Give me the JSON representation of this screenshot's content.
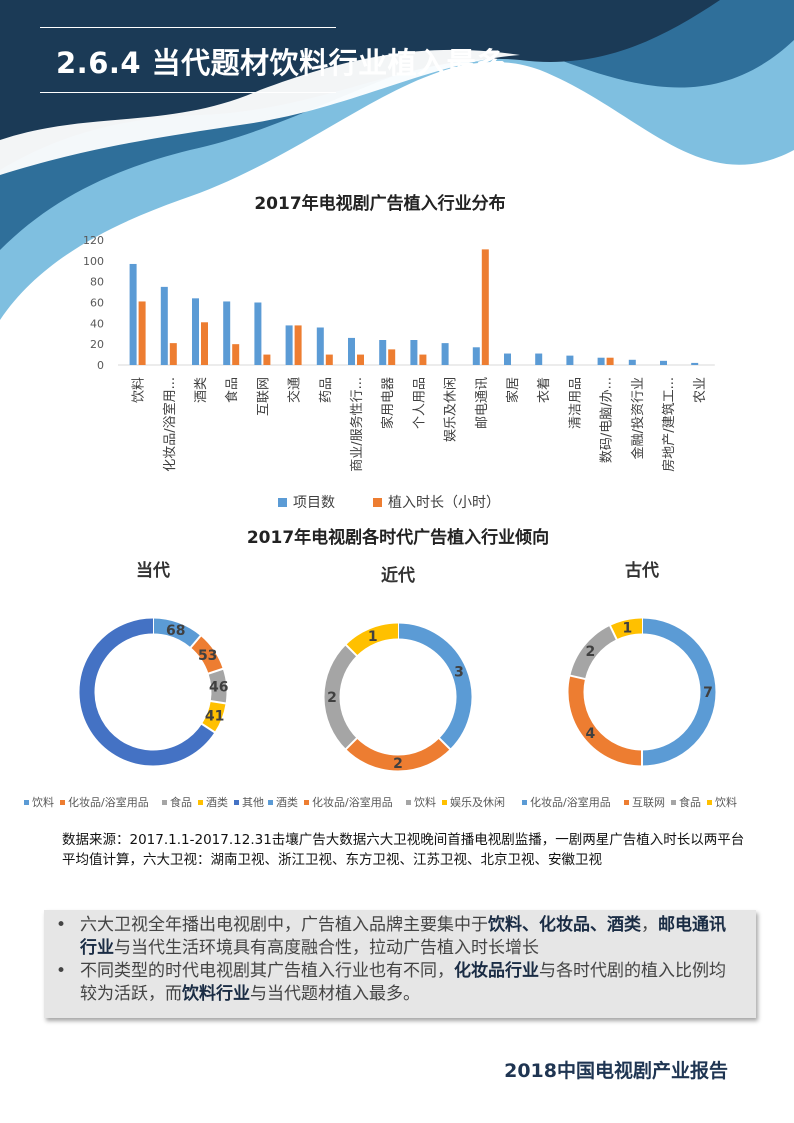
{
  "header": {
    "title": "2.6.4 当代题材饮料行业植入最多"
  },
  "colors": {
    "blue": "#5b9bd5",
    "orange": "#ed7d31",
    "gray": "#a5a5a5",
    "yellow": "#ffc000",
    "darkblue": "#4472c4",
    "navy": "#1f3552"
  },
  "chart_data": [
    {
      "type": "bar",
      "title": "2017年电视剧广告植入行业分布",
      "categories": [
        "饮料",
        "化妆品/浴室用...",
        "酒类",
        "食品",
        "互联网",
        "交通",
        "药品",
        "商业/服务性行...",
        "家用电器",
        "个人用品",
        "娱乐及休闲",
        "邮电通讯",
        "家居",
        "衣着",
        "清洁用品",
        "数码/电脑/办...",
        "金融/投资行业",
        "房地产/建筑工...",
        "农业"
      ],
      "yticks": [
        "0",
        "20",
        "40",
        "60",
        "80",
        "100",
        "120"
      ],
      "ylim": [
        0,
        120
      ],
      "grid": false,
      "legend_position": "bottom",
      "series": [
        {
          "name": "项目数",
          "color": "#5b9bd5",
          "values": [
            97,
            75,
            64,
            61,
            60,
            38,
            36,
            26,
            24,
            24,
            21,
            17,
            11,
            11,
            9,
            7,
            5,
            4,
            2
          ]
        },
        {
          "name": "植入时长（小时）",
          "color": "#ed7d31",
          "values": [
            61,
            21,
            41,
            20,
            10,
            38,
            10,
            10,
            15,
            10,
            0,
            111,
            0,
            0,
            0,
            7,
            0,
            0,
            0
          ]
        }
      ]
    },
    {
      "type": "pie",
      "style": "donut",
      "title": "2017年电视剧各时代广告植入行业倾向",
      "charts": [
        {
          "name": "当代",
          "slices": [
            {
              "label": "饮料",
              "value": 68,
              "color": "#5b9bd5",
              "shown": true
            },
            {
              "label": "化妆品/浴室用品",
              "value": 53,
              "color": "#ed7d31",
              "shown": true
            },
            {
              "label": "食品",
              "value": 46,
              "color": "#a5a5a5",
              "shown": true
            },
            {
              "label": "酒类",
              "value": 41,
              "color": "#ffc000",
              "shown": true
            },
            {
              "label": "其他",
              "value": 400,
              "color": "#4472c4",
              "shown": false
            }
          ]
        },
        {
          "name": "近代",
          "slices": [
            {
              "label": "酒类",
              "value": 3,
              "color": "#5b9bd5",
              "shown": true
            },
            {
              "label": "化妆品/浴室用品",
              "value": 2,
              "color": "#ed7d31",
              "shown": true
            },
            {
              "label": "饮料",
              "value": 2,
              "color": "#a5a5a5",
              "shown": true
            },
            {
              "label": "娱乐及休闲",
              "value": 1,
              "color": "#ffc000",
              "shown": true
            }
          ]
        },
        {
          "name": "古代",
          "slices": [
            {
              "label": "化妆品/浴室用品",
              "value": 7,
              "color": "#5b9bd5",
              "shown": true
            },
            {
              "label": "互联网",
              "value": 4,
              "color": "#ed7d31",
              "shown": true
            },
            {
              "label": "食品",
              "value": 2,
              "color": "#a5a5a5",
              "shown": true
            },
            {
              "label": "饮料",
              "value": 1,
              "color": "#ffc000",
              "shown": true
            }
          ]
        }
      ]
    }
  ],
  "source_note": "数据来源：2017.1.1-2017.12.31击壤广告大数据六大卫视晚间首播电视剧监播，一剧两星广告植入时长以两平台平均值计算，六大卫视：湖南卫视、浙江卫视、东方卫视、江苏卫视、北京卫视、安徽卫视",
  "summary": {
    "bullet_symbol": "•",
    "items": [
      {
        "parts": [
          {
            "text": "六大卫视全年播出电视剧中，广告植入品牌主要集中于",
            "bold": false
          },
          {
            "text": "饮料、化妆品、酒类",
            "bold": true
          },
          {
            "text": "，",
            "bold": false
          },
          {
            "text": "邮电通讯行业",
            "bold": true
          },
          {
            "text": "与当代生活环境具有高度融合性，拉动广告植入时长增长",
            "bold": false
          }
        ]
      },
      {
        "parts": [
          {
            "text": "不同类型的时代电视剧其广告植入行业也有不同，",
            "bold": false
          },
          {
            "text": "化妆品行业",
            "bold": true
          },
          {
            "text": "与各时代剧的植入比例均较为活跃，而",
            "bold": false
          },
          {
            "text": "饮料行业",
            "bold": true
          },
          {
            "text": "与当代题材植入最多。",
            "bold": false
          }
        ]
      }
    ]
  },
  "footer": {
    "text": "2018中国电视剧产业报告"
  }
}
